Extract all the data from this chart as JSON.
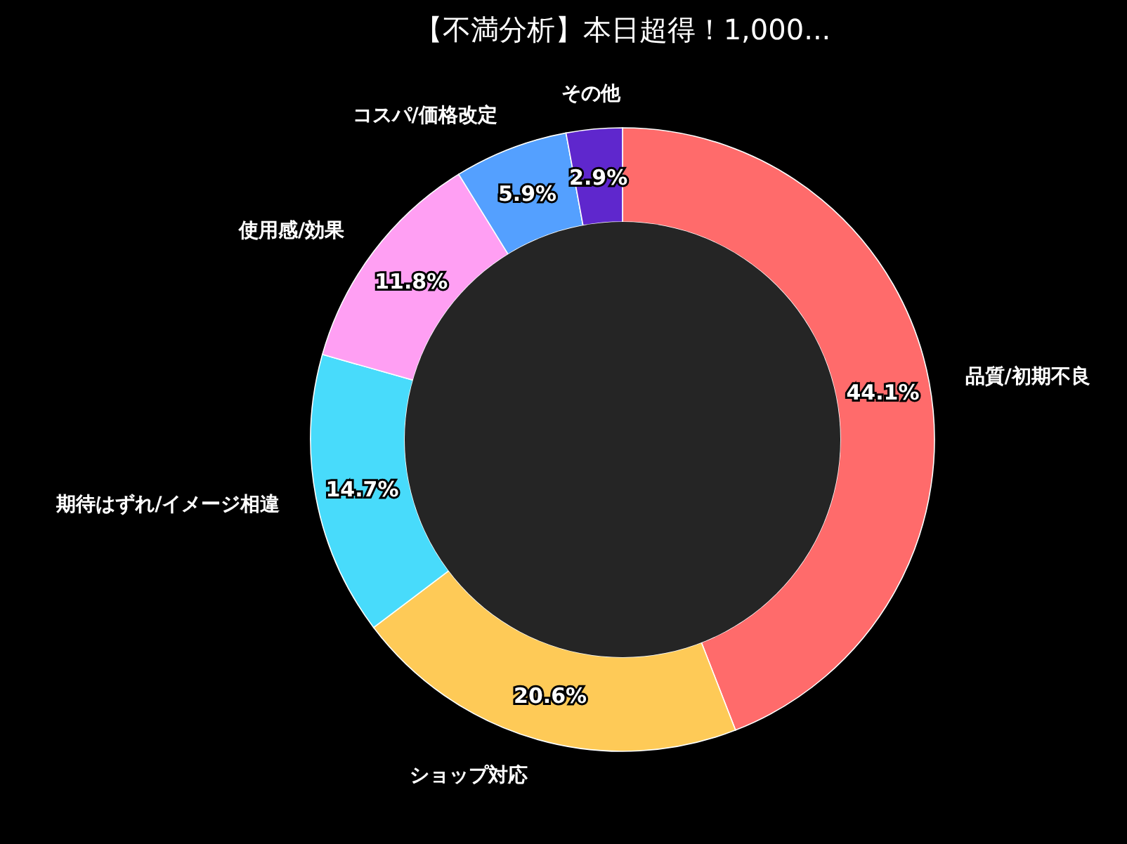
{
  "chart_data": {
    "type": "donut",
    "title": "【不満分析】本日超得！1,000...",
    "categories": [
      "品質/初期不良",
      "ショップ対応",
      "期待はずれ/イメージ相違",
      "使用感/効果",
      "コスパ/価格改定",
      "その他"
    ],
    "values": [
      44.1,
      20.6,
      14.7,
      11.8,
      5.9,
      2.9
    ],
    "colors": [
      "#ff6b6b",
      "#feca57",
      "#48dbfb",
      "#ff9ff3",
      "#54a0ff",
      "#5f27cd"
    ],
    "value_labels": [
      "44.1%",
      "20.6%",
      "14.7%",
      "11.8%",
      "5.9%",
      "2.9%"
    ]
  }
}
